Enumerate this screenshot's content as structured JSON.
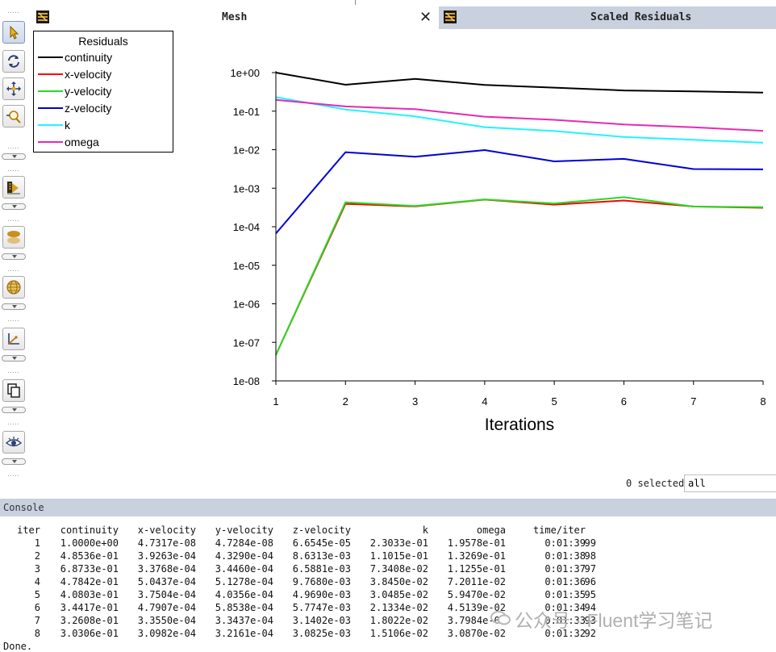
{
  "tabs": {
    "mesh": {
      "title": "Mesh",
      "close": "✕"
    },
    "residuals": {
      "title": "Scaled Residuals"
    }
  },
  "toolbar": {
    "tools": [
      "pointer-tool",
      "rotate-tool",
      "pan-tool",
      "zoom-tool",
      "contours-tool",
      "surface-tool",
      "mesh-display-tool",
      "axes-tool",
      "copy-tool",
      "view-tool"
    ]
  },
  "legend": {
    "title": "Residuals",
    "items": [
      {
        "label": "continuity",
        "color": "#000000"
      },
      {
        "label": "x-velocity",
        "color": "#ff0000"
      },
      {
        "label": "y-velocity",
        "color": "#22dd22"
      },
      {
        "label": "z-velocity",
        "color": "#0000d8"
      },
      {
        "label": "k",
        "color": "#1ff4ff"
      },
      {
        "label": "omega",
        "color": "#e52ab3"
      }
    ]
  },
  "chart_data": {
    "type": "line",
    "title": "Scaled Residuals",
    "xlabel": "Iterations",
    "ylabel": "",
    "yscale": "log",
    "xlim": [
      1,
      8
    ],
    "ylim": [
      1e-08,
      1
    ],
    "xticks": [
      "1",
      "2",
      "3",
      "4",
      "5",
      "6",
      "7",
      "8"
    ],
    "yticks": [
      "1e+00",
      "1e-01",
      "1e-02",
      "1e-03",
      "1e-04",
      "1e-05",
      "1e-06",
      "1e-07",
      "1e-08"
    ],
    "x": [
      1,
      2,
      3,
      4,
      5,
      6,
      7,
      8
    ],
    "series": [
      {
        "name": "continuity",
        "color": "#000000",
        "values": [
          1.0,
          0.48536,
          0.68733,
          0.47842,
          0.40803,
          0.34417,
          0.32608,
          0.30306
        ]
      },
      {
        "name": "x-velocity",
        "color": "#ff0000",
        "values": [
          4.7317e-08,
          0.00039263,
          0.00033768,
          0.00050437,
          0.00037504,
          0.00047907,
          0.0003355,
          0.00030982
        ]
      },
      {
        "name": "y-velocity",
        "color": "#22dd22",
        "values": [
          4.7284e-08,
          0.0004329,
          0.0003446,
          0.00051278,
          0.00040356,
          0.00058538,
          0.00033437,
          0.00032161
        ]
      },
      {
        "name": "z-velocity",
        "color": "#0000d8",
        "values": [
          6.6545e-05,
          0.0086313,
          0.0065881,
          0.009768,
          0.004969,
          0.0057747,
          0.0031402,
          0.0030825
        ]
      },
      {
        "name": "k",
        "color": "#1ff4ff",
        "values": [
          0.23033,
          0.11015,
          0.073408,
          0.03845,
          0.030485,
          0.021334,
          0.018022,
          0.015106
        ]
      },
      {
        "name": "omega",
        "color": "#e52ab3",
        "values": [
          0.19578,
          0.13269,
          0.11255,
          0.072011,
          0.05947,
          0.045139,
          0.037984,
          0.03087
        ]
      }
    ]
  },
  "selection": {
    "status": "0 selected",
    "filter_value": "all"
  },
  "console": {
    "title": "Console",
    "headers": [
      "iter",
      "continuity",
      "x-velocity",
      "y-velocity",
      "z-velocity",
      "k",
      "omega",
      "time/iter",
      ""
    ],
    "rows": [
      [
        "1",
        "1.0000e+00",
        "4.7317e-08",
        "4.7284e-08",
        "6.6545e-05",
        "2.3033e-01",
        "1.9578e-01",
        "0:01:39",
        "99"
      ],
      [
        "2",
        "4.8536e-01",
        "3.9263e-04",
        "4.3290e-04",
        "8.6313e-03",
        "1.1015e-01",
        "1.3269e-01",
        "0:01:38",
        "98"
      ],
      [
        "3",
        "6.8733e-01",
        "3.3768e-04",
        "3.4460e-04",
        "6.5881e-03",
        "7.3408e-02",
        "1.1255e-01",
        "0:01:37",
        "97"
      ],
      [
        "4",
        "4.7842e-01",
        "5.0437e-04",
        "5.1278e-04",
        "9.7680e-03",
        "3.8450e-02",
        "7.2011e-02",
        "0:01:36",
        "96"
      ],
      [
        "5",
        "4.0803e-01",
        "3.7504e-04",
        "4.0356e-04",
        "4.9690e-03",
        "3.0485e-02",
        "5.9470e-02",
        "0:01:35",
        "95"
      ],
      [
        "6",
        "3.4417e-01",
        "4.7907e-04",
        "5.8538e-04",
        "5.7747e-03",
        "2.1334e-02",
        "4.5139e-02",
        "0:01:34",
        "94"
      ],
      [
        "7",
        "3.2608e-01",
        "3.3550e-04",
        "3.3437e-04",
        "3.1402e-03",
        "1.8022e-02",
        "3.7984e-02",
        "0:01:33",
        "93"
      ],
      [
        "8",
        "3.0306e-01",
        "3.0982e-04",
        "3.2161e-04",
        "3.0825e-03",
        "1.5106e-02",
        "3.0870e-02",
        "0:01:32",
        "92"
      ]
    ],
    "done": "Done."
  },
  "watermark": "公众号 · Fluent学习笔记"
}
